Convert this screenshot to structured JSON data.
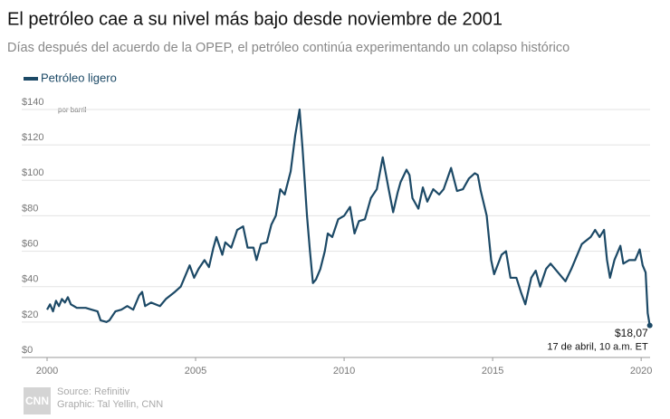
{
  "chart_data": {
    "type": "line",
    "title": "El petróleo cae a su nivel más bajo desde noviembre de 2001",
    "subtitle": "Días después del acuerdo de la OPEP, el petróleo continúa experimentando un colapso histórico",
    "y_unit_note": "por barril",
    "annotation": "17 de abril, 10 a.m. ET",
    "source": "Source: Refinitiv",
    "credit": "Graphic: Tal Yellin, CNN",
    "logo": "CNN",
    "legend": "top-left",
    "grid": true,
    "xlim": [
      2000,
      2020.3
    ],
    "xticks": [
      2000,
      2005,
      2010,
      2015,
      2020
    ],
    "ylim": [
      0,
      140
    ],
    "yticks": [
      {
        "value": 0,
        "label": "$0"
      },
      {
        "value": 20,
        "label": "$20"
      },
      {
        "value": 40,
        "label": "$40"
      },
      {
        "value": 60,
        "label": "$60"
      },
      {
        "value": 80,
        "label": "$80"
      },
      {
        "value": 100,
        "label": "$100"
      },
      {
        "value": 120,
        "label": "$120"
      },
      {
        "value": 140,
        "label": "$140"
      }
    ],
    "x": [
      2000,
      2000.1,
      2000.2,
      2000.3,
      2000.4,
      2000.5,
      2000.6,
      2000.7,
      2000.8,
      2000.9,
      2001,
      2001.3,
      2001.5,
      2001.7,
      2001.8,
      2002,
      2002.1,
      2002.3,
      2002.5,
      2002.7,
      2002.9,
      2003.1,
      2003.2,
      2003.3,
      2003.5,
      2003.8,
      2004,
      2004.3,
      2004.5,
      2004.6,
      2004.8,
      2004.95,
      2005.1,
      2005.3,
      2005.45,
      2005.6,
      2005.7,
      2005.9,
      2006,
      2006.2,
      2006.4,
      2006.6,
      2006.75,
      2006.95,
      2007.05,
      2007.2,
      2007.4,
      2007.55,
      2007.7,
      2007.85,
      2008,
      2008.2,
      2008.35,
      2008.5,
      2008.6,
      2008.75,
      2008.85,
      2008.95,
      2009.05,
      2009.2,
      2009.35,
      2009.45,
      2009.6,
      2009.8,
      2010,
      2010.2,
      2010.35,
      2010.5,
      2010.7,
      2010.9,
      2011.1,
      2011.3,
      2011.5,
      2011.65,
      2011.8,
      2011.9,
      2012.1,
      2012.2,
      2012.3,
      2012.5,
      2012.65,
      2012.8,
      2013,
      2013.2,
      2013.35,
      2013.6,
      2013.8,
      2014,
      2014.2,
      2014.4,
      2014.5,
      2014.6,
      2014.8,
      2014.95,
      2015.05,
      2015.3,
      2015.45,
      2015.6,
      2015.8,
      2015.95,
      2016.1,
      2016.3,
      2016.45,
      2016.6,
      2016.8,
      2016.95,
      2017.2,
      2017.45,
      2017.65,
      2017.8,
      2018,
      2018.3,
      2018.45,
      2018.6,
      2018.75,
      2018.85,
      2018.95,
      2019.1,
      2019.3,
      2019.4,
      2019.6,
      2019.8,
      2019.95,
      2020.05,
      2020.15,
      2020.22,
      2020.29
    ],
    "series": [
      {
        "name": "Petróleo ligero",
        "color": "#1c4966",
        "values": [
          27,
          30,
          26,
          32,
          29,
          33,
          31,
          34,
          30,
          29,
          28,
          28,
          27,
          26,
          21,
          20,
          21,
          26,
          27,
          29,
          27,
          35,
          37,
          29,
          31,
          29,
          33,
          37,
          40,
          44,
          52,
          45,
          50,
          55,
          51,
          62,
          68,
          58,
          65,
          62,
          72,
          74,
          62,
          62,
          55,
          64,
          65,
          75,
          80,
          95,
          92,
          105,
          125,
          140,
          118,
          80,
          60,
          42,
          44,
          50,
          60,
          70,
          68,
          78,
          80,
          85,
          70,
          77,
          78,
          90,
          95,
          113,
          95,
          82,
          93,
          99,
          106,
          103,
          90,
          84,
          96,
          88,
          95,
          92,
          95,
          107,
          94,
          95,
          101,
          104,
          103,
          94,
          80,
          55,
          47,
          58,
          60,
          45,
          45,
          37,
          30,
          45,
          49,
          40,
          50,
          53,
          48,
          43,
          50,
          56,
          64,
          68,
          72,
          68,
          72,
          55,
          45,
          55,
          63,
          53,
          55,
          55,
          61,
          52,
          48,
          25,
          18.07
        ],
        "value_labels": [
          null,
          null,
          null,
          null,
          null,
          null,
          null,
          null,
          null,
          null,
          null,
          null,
          null,
          null,
          null,
          null,
          null,
          null,
          null,
          null,
          null,
          null,
          null,
          null,
          null,
          null,
          null,
          null,
          null,
          null,
          null,
          null,
          null,
          null,
          null,
          null,
          null,
          null,
          null,
          null,
          null,
          null,
          null,
          null,
          null,
          null,
          null,
          null,
          null,
          null,
          null,
          null,
          null,
          null,
          null,
          null,
          null,
          null,
          null,
          null,
          null,
          null,
          null,
          null,
          null,
          null,
          null,
          null,
          null,
          null,
          null,
          null,
          null,
          null,
          null,
          null,
          null,
          null,
          null,
          null,
          null,
          null,
          null,
          null,
          null,
          null,
          null,
          null,
          null,
          null,
          null,
          null,
          null,
          null,
          null,
          null,
          null,
          null,
          null,
          null,
          null,
          null,
          null,
          null,
          null,
          null,
          null,
          null,
          null,
          null,
          null,
          null,
          null,
          null,
          null,
          null,
          null,
          null,
          null,
          null,
          null,
          null,
          null,
          null,
          null,
          null,
          "$18,07"
        ]
      }
    ]
  }
}
